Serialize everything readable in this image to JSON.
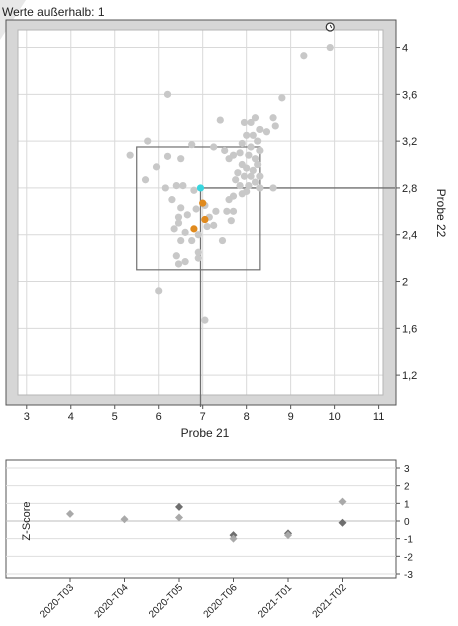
{
  "header": {
    "outliers_text": "Werte außerhalb: 1"
  },
  "colors": {
    "frame": "#d6d6d6",
    "plot_bg": "#ffffff",
    "grid": "#d9d9d9",
    "point_gray": "#c8c8c8",
    "point_orange": "#e08a1e",
    "point_cyan": "#37d6df",
    "crosshair": "#707070",
    "box": "#707070",
    "zscore_dark": "#6e6e6e",
    "zscore_light": "#a9a9a9"
  },
  "chart_data": [
    {
      "type": "scatter",
      "xlabel": "Probe 21",
      "ylabel": "Probe 22",
      "xlim": [
        2.8,
        11.1
      ],
      "ylim": [
        1.03,
        4.15
      ],
      "x_ticks": [
        3,
        4,
        5,
        6,
        7,
        8,
        9,
        10,
        11
      ],
      "y_ticks": [
        1.2,
        1.6,
        2,
        2.4,
        2.8,
        3.2,
        3.6,
        4
      ],
      "x_tick_labels": [
        "3",
        "4",
        "5",
        "6",
        "7",
        "8",
        "9",
        "10",
        "11"
      ],
      "y_tick_labels": [
        "1,2",
        "1,6",
        "2",
        "2,4",
        "2,8",
        "3,2",
        "3,6",
        "4"
      ],
      "grid": true,
      "reference_box": {
        "x": [
          5.5,
          8.3
        ],
        "y": [
          2.1,
          3.15
        ]
      },
      "crosshair": {
        "x": 6.95,
        "y": 2.8
      },
      "outlier_marker": {
        "x": 9.9,
        "y": 4.15
      },
      "series": [
        {
          "color": "gray",
          "points": [
            [
              9.9,
              4.0
            ],
            [
              9.3,
              3.93
            ],
            [
              8.8,
              3.57
            ],
            [
              8.65,
              3.33
            ],
            [
              8.6,
              3.4
            ],
            [
              8.45,
              3.28
            ],
            [
              8.2,
              3.4
            ],
            [
              8.1,
              3.36
            ],
            [
              7.95,
              3.36
            ],
            [
              8.3,
              3.3
            ],
            [
              8.15,
              3.25
            ],
            [
              8.0,
              3.25
            ],
            [
              8.25,
              3.2
            ],
            [
              8.1,
              3.15
            ],
            [
              7.9,
              3.18
            ],
            [
              8.3,
              3.12
            ],
            [
              8.2,
              3.05
            ],
            [
              8.05,
              3.08
            ],
            [
              7.85,
              3.1
            ],
            [
              7.7,
              3.08
            ],
            [
              7.6,
              3.05
            ],
            [
              8.25,
              3.0
            ],
            [
              8.15,
              2.95
            ],
            [
              8.0,
              2.97
            ],
            [
              7.9,
              3.0
            ],
            [
              8.3,
              2.9
            ],
            [
              8.1,
              2.9
            ],
            [
              7.95,
              2.9
            ],
            [
              7.8,
              2.93
            ],
            [
              8.2,
              2.85
            ],
            [
              8.05,
              2.82
            ],
            [
              7.85,
              2.82
            ],
            [
              7.75,
              2.87
            ],
            [
              8.3,
              2.8
            ],
            [
              8.6,
              2.8
            ],
            [
              8.0,
              2.77
            ],
            [
              7.9,
              2.75
            ],
            [
              7.7,
              2.73
            ],
            [
              7.6,
              2.7
            ],
            [
              7.55,
              2.6
            ],
            [
              7.7,
              2.6
            ],
            [
              7.65,
              2.52
            ],
            [
              7.4,
              3.38
            ],
            [
              7.25,
              3.15
            ],
            [
              7.5,
              3.12
            ],
            [
              6.75,
              3.17
            ],
            [
              6.5,
              3.05
            ],
            [
              6.2,
              3.07
            ],
            [
              6.2,
              3.6
            ],
            [
              5.95,
              2.98
            ],
            [
              5.75,
              3.2
            ],
            [
              5.35,
              3.08
            ],
            [
              5.7,
              2.87
            ],
            [
              6.15,
              2.8
            ],
            [
              6.4,
              2.82
            ],
            [
              6.55,
              2.82
            ],
            [
              6.8,
              2.78
            ],
            [
              6.3,
              2.7
            ],
            [
              6.5,
              2.63
            ],
            [
              6.65,
              2.57
            ],
            [
              6.45,
              2.55
            ],
            [
              6.45,
              2.5
            ],
            [
              6.35,
              2.45
            ],
            [
              6.6,
              2.42
            ],
            [
              6.9,
              2.4
            ],
            [
              7.1,
              2.47
            ],
            [
              7.25,
              2.48
            ],
            [
              7.15,
              2.55
            ],
            [
              7.3,
              2.6
            ],
            [
              6.85,
              2.62
            ],
            [
              7.05,
              2.65
            ],
            [
              6.5,
              2.35
            ],
            [
              6.75,
              2.35
            ],
            [
              7.45,
              2.35
            ],
            [
              6.4,
              2.22
            ],
            [
              6.9,
              2.2
            ],
            [
              6.6,
              2.17
            ],
            [
              6.9,
              2.25
            ],
            [
              6.45,
              2.15
            ],
            [
              6.0,
              1.92
            ],
            [
              7.05,
              1.67
            ]
          ]
        },
        {
          "color": "orange",
          "points": [
            [
              7.0,
              2.67
            ],
            [
              7.05,
              2.53
            ],
            [
              6.8,
              2.45
            ]
          ]
        },
        {
          "color": "cyan",
          "points": [
            [
              6.95,
              2.8
            ]
          ]
        }
      ]
    },
    {
      "type": "scatter",
      "ylabel": "Z-Score",
      "ylim": [
        -3,
        3
      ],
      "y_ticks": [
        3,
        2,
        1,
        0,
        -1,
        -2,
        -3
      ],
      "y_tick_labels": [
        "3",
        "2",
        "1",
        "0",
        "-1",
        "-2",
        "-3"
      ],
      "categories": [
        "2020-T03",
        "2020-T04",
        "2020-T05",
        "2020-T06",
        "2021-T01",
        "2021-T02"
      ],
      "grid": true,
      "series": [
        {
          "color": "dark",
          "values": [
            null,
            null,
            0.8,
            -0.8,
            -0.7,
            -0.1
          ]
        },
        {
          "color": "light",
          "values": [
            0.4,
            0.1,
            0.2,
            -1.0,
            -0.8,
            1.1
          ]
        }
      ]
    }
  ]
}
